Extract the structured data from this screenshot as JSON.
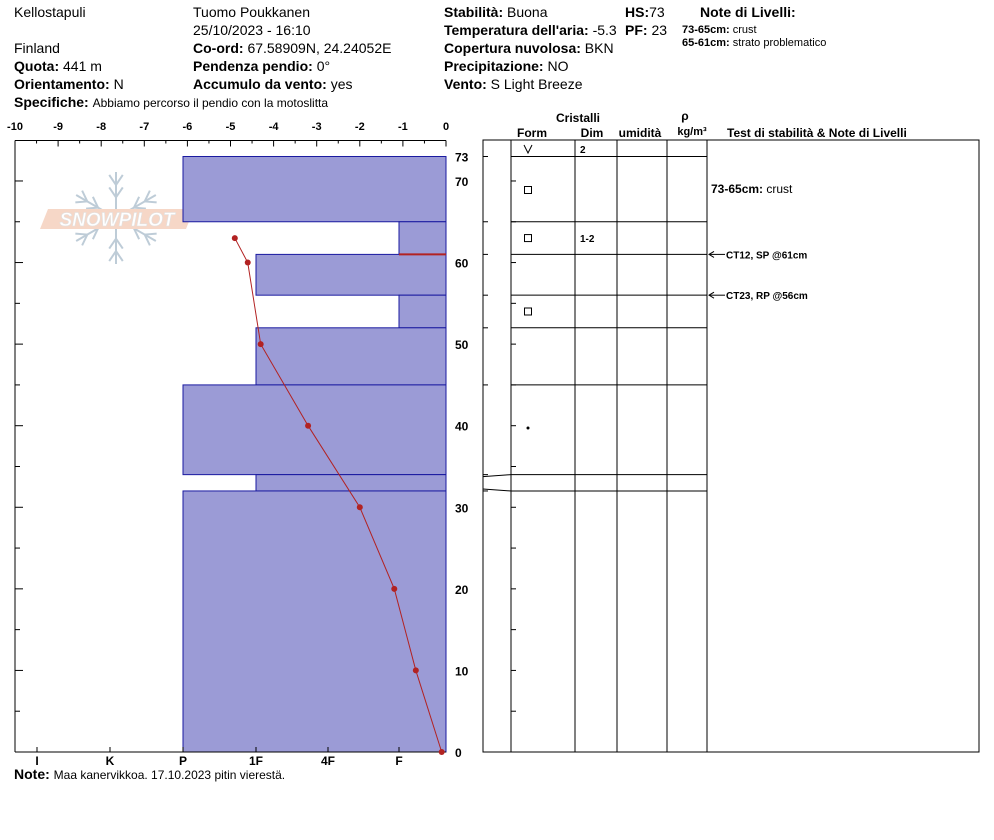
{
  "header": {
    "location": "Kellostapuli",
    "observer": "Tuomo Poukkanen",
    "datetime": "25/10/2023 - 16:10",
    "country": "Finland",
    "coord_label": "Co-ord:",
    "coord_value": "67.58909N, 24.24052E",
    "quota_label": "Quota:",
    "quota_value": "441 m",
    "pendenza_label": "Pendenza pendio:",
    "pendenza_value": "0°",
    "orient_label": "Orientamento:",
    "orient_value": "N",
    "accumulo_label": "Accumulo da vento:",
    "accumulo_value": "yes",
    "specifiche_label": "Specifiche:",
    "specifiche_value": "Abbiamo percorso il pendio con la motoslitta",
    "stabilita_label": "Stabilità:",
    "stabilita_value": "Buona",
    "temp_label": "Temperatura dell'aria:",
    "temp_value": "-5.3",
    "copertura_label": "Copertura nuvolosa:",
    "copertura_value": "BKN",
    "precip_label": "Precipitazione:",
    "precip_value": "NO",
    "vento_label": "Vento:",
    "vento_value": "S Light Breeze",
    "hs_label": "HS:",
    "hs_value": "73",
    "pf_label": "PF:",
    "pf_value": "23",
    "note_livelli_title": "Note di Livelli:",
    "note_livelli": [
      {
        "range": "73-65cm:",
        "text": "crust"
      },
      {
        "range": "65-61cm:",
        "text": "strato problematico"
      }
    ]
  },
  "logo_text": "SNOWPILOT",
  "table_headers": {
    "cristalli": "Cristalli",
    "form": "Form",
    "dim": "Dim",
    "umidita": "umidità",
    "rho": "ρ",
    "density_unit": "kg/m³",
    "test": "Test di stabilità & Note di Livelli"
  },
  "footer": {
    "note_label": "Note:",
    "note_value": "Maa kanervikkoa. 17.10.2023 pitin vierestä."
  },
  "colors": {
    "layer_fill": "#9b9bd6",
    "layer_stroke": "#1a1aa0",
    "temp_line": "#b22222",
    "weak_layer": "#b22222"
  },
  "chart_data": {
    "type": "snow_profile",
    "temperature_axis": {
      "range": [
        -10,
        0
      ],
      "ticks": [
        "-10",
        "-9",
        "-8",
        "-7",
        "-6",
        "-5",
        "-4",
        "-3",
        "-2",
        "-1",
        "0"
      ]
    },
    "height_axis": {
      "range": [
        0,
        73
      ],
      "ticks": [
        "0",
        "10",
        "20",
        "30",
        "40",
        "50",
        "60",
        "70",
        "73"
      ]
    },
    "hardness_axis": {
      "ticks": [
        "I",
        "K",
        "P",
        "1F",
        "4F",
        "F"
      ]
    },
    "temperature_profile": {
      "points": [
        {
          "h": 63,
          "t": -4.9
        },
        {
          "h": 60,
          "t": -4.6
        },
        {
          "h": 50,
          "t": -4.3
        },
        {
          "h": 40,
          "t": -3.2
        },
        {
          "h": 30,
          "t": -2.0
        },
        {
          "h": 20,
          "t": -1.2
        },
        {
          "h": 10,
          "t": -0.7
        },
        {
          "h": 0,
          "t": -0.1
        }
      ]
    },
    "layers": [
      {
        "top": 73,
        "bottom": 65,
        "hardness": "P",
        "form_icon": "square",
        "dim": ""
      },
      {
        "top": 65,
        "bottom": 61,
        "hardness": "F",
        "form_icon": "square",
        "dim": "1-2"
      },
      {
        "top": 61,
        "bottom": 56,
        "hardness": "1F",
        "form_icon": "",
        "dim": ""
      },
      {
        "top": 56,
        "bottom": 52,
        "hardness": "F",
        "form_icon": "square",
        "dim": ""
      },
      {
        "top": 52,
        "bottom": 45,
        "hardness": "1F",
        "form_icon": "",
        "dim": ""
      },
      {
        "top": 45,
        "bottom": 34,
        "hardness": "P",
        "form_icon": "dot",
        "dim": ""
      },
      {
        "top": 34,
        "bottom": 32,
        "hardness": "1F",
        "form_icon": "",
        "dim": ""
      },
      {
        "top": 32,
        "bottom": 0,
        "hardness": "P",
        "form_icon": "",
        "dim": ""
      }
    ],
    "surface": {
      "form_icon": "v",
      "dim": "2"
    },
    "weak_layer_height": 61,
    "stability_tests": [
      {
        "height": 61,
        "text": "CT12, SP @61cm"
      },
      {
        "height": 56,
        "text": "CT23, RP @56cm"
      }
    ],
    "layer_notes": [
      {
        "height": 69,
        "label": "73-65cm:",
        "text": "crust"
      }
    ]
  }
}
